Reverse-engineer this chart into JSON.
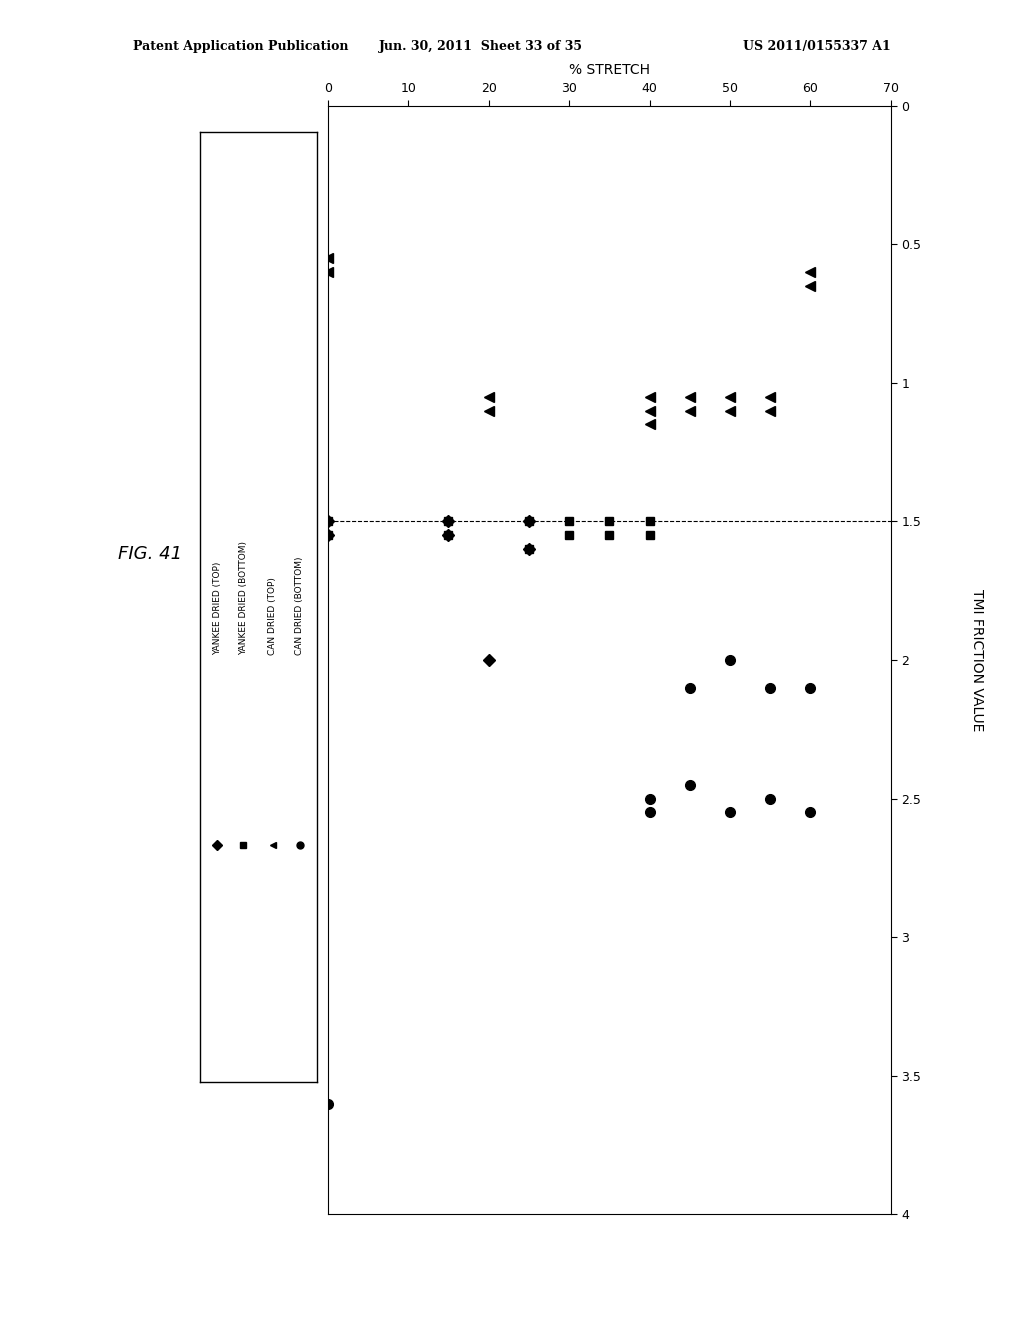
{
  "title": "FIG. 41",
  "xlabel": "TMI FRICTION VALUE",
  "ylabel": "% STRETCH",
  "patent_header_left": "Patent Application Publication",
  "patent_header_mid": "Jun. 30, 2011  Sheet 33 of 35",
  "patent_header_right": "US 2011/0155337 A1",
  "xlim_friction": [
    0,
    4.0
  ],
  "ylim_stretch": [
    0,
    70
  ],
  "friction_ticks": [
    0,
    0.5,
    1.0,
    1.5,
    2.0,
    2.5,
    3.0,
    3.5,
    4.0
  ],
  "stretch_ticks": [
    0,
    10,
    20,
    30,
    40,
    50,
    60,
    70
  ],
  "vline_friction": 1.5,
  "series": {
    "YANKEE_DRIED_TOP": {
      "marker": "D",
      "label": "YANKEE DRIED (TOP)",
      "points_friction_stretch": [
        [
          1.5,
          15
        ],
        [
          1.55,
          15
        ],
        [
          1.5,
          25
        ],
        [
          1.6,
          25
        ],
        [
          2.0,
          20
        ],
        [
          1.5,
          0
        ],
        [
          1.55,
          0
        ]
      ]
    },
    "YANKEE_DRIED_BOTTOM": {
      "marker": "s",
      "label": "YANKEE DRIED (BOTTOM)",
      "points_friction_stretch": [
        [
          1.5,
          0
        ],
        [
          1.55,
          0
        ],
        [
          1.5,
          15
        ],
        [
          1.55,
          15
        ],
        [
          1.5,
          25
        ],
        [
          1.6,
          25
        ],
        [
          1.5,
          30
        ],
        [
          1.55,
          30
        ],
        [
          1.5,
          35
        ],
        [
          1.55,
          35
        ],
        [
          1.5,
          40
        ],
        [
          1.55,
          40
        ]
      ]
    },
    "CAN_DRIED_TOP": {
      "marker": "<",
      "label": "CAN DRIED (TOP)",
      "points_friction_stretch": [
        [
          0.6,
          0
        ],
        [
          0.55,
          0
        ],
        [
          1.1,
          20
        ],
        [
          1.05,
          20
        ],
        [
          1.1,
          45
        ],
        [
          1.05,
          45
        ],
        [
          1.1,
          50
        ],
        [
          1.05,
          50
        ],
        [
          1.1,
          55
        ],
        [
          1.05,
          55
        ],
        [
          0.65,
          60
        ],
        [
          0.6,
          60
        ],
        [
          1.1,
          40
        ],
        [
          1.05,
          40
        ],
        [
          1.15,
          40
        ]
      ]
    },
    "CAN_DRIED_BOTTOM": {
      "marker": "o",
      "label": "CAN DRIED (BOTTOM)",
      "points_friction_stretch": [
        [
          3.6,
          0
        ],
        [
          2.5,
          40
        ],
        [
          2.55,
          40
        ],
        [
          2.45,
          45
        ],
        [
          2.1,
          45
        ],
        [
          2.55,
          50
        ],
        [
          2.0,
          50
        ],
        [
          2.5,
          55
        ],
        [
          2.1,
          55
        ],
        [
          2.55,
          60
        ],
        [
          2.1,
          60
        ]
      ]
    }
  },
  "background_color": "#ffffff"
}
